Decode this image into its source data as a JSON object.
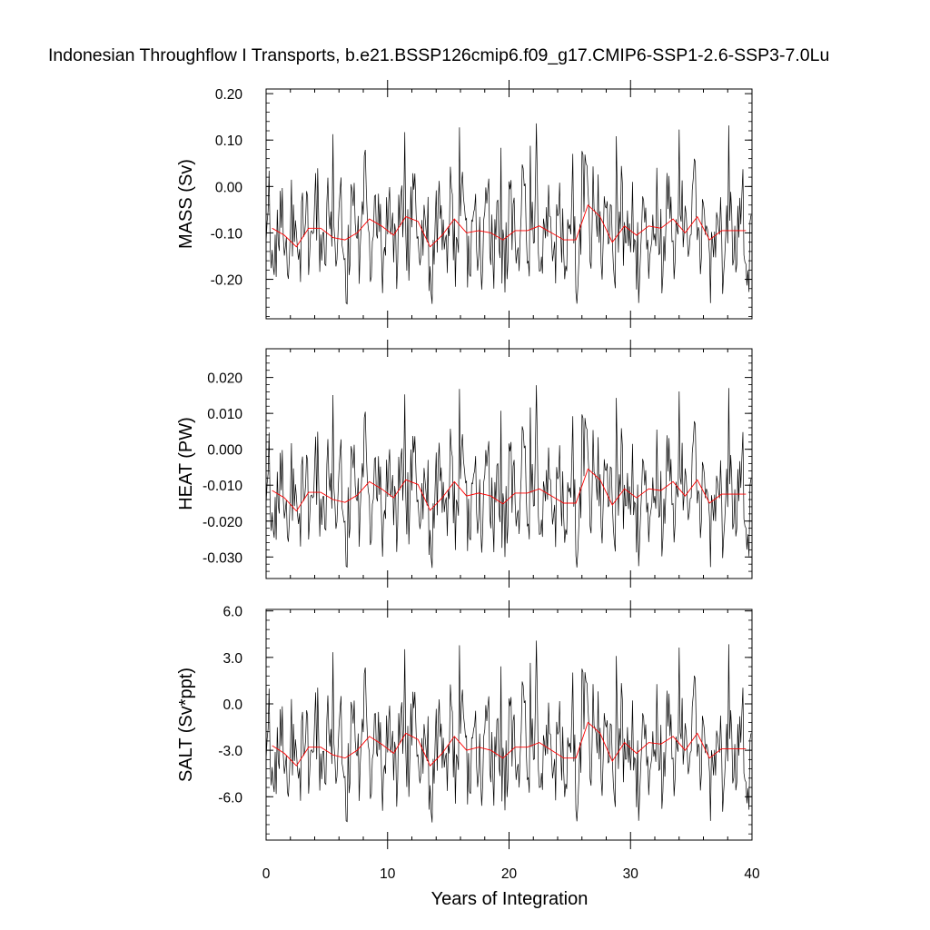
{
  "title": "Indonesian Throughflow I Transports, b.e21.BSSP126cmip6.f09_g17.CMIP6-SSP1-2.6-SSP3-7.0Lu",
  "xlabel": "Years of Integration",
  "colors": {
    "monthly_line": "#000000",
    "annual_line": "#ff0000",
    "frame": "#000000"
  },
  "chart_data": [
    {
      "type": "line",
      "ylabel": "MASS (Sv)",
      "xlim": [
        0,
        40
      ],
      "ylim": [
        -0.285,
        0.21
      ],
      "yticks": [
        0.2,
        0.1,
        0.0,
        -0.1,
        -0.2
      ],
      "ytick_labels": [
        "0.20",
        "0.10",
        "0.00",
        "-0.10",
        "-0.20"
      ],
      "xticks": [
        0,
        10,
        20,
        30,
        40
      ],
      "xtick_labels": [],
      "annual": [
        -0.09,
        -0.105,
        -0.13,
        -0.09,
        -0.09,
        -0.11,
        -0.115,
        -0.1,
        -0.07,
        -0.085,
        -0.105,
        -0.065,
        -0.075,
        -0.13,
        -0.105,
        -0.07,
        -0.1,
        -0.095,
        -0.1,
        -0.115,
        -0.095,
        -0.095,
        -0.085,
        -0.1,
        -0.115,
        -0.115,
        -0.04,
        -0.065,
        -0.12,
        -0.085,
        -0.105,
        -0.085,
        -0.09,
        -0.07,
        -0.1,
        -0.065,
        -0.115,
        -0.095,
        -0.095,
        -0.095
      ],
      "monthly_range": [
        -0.28,
        0.21
      ]
    },
    {
      "type": "line",
      "ylabel": "HEAT (PW)",
      "xlim": [
        0,
        40
      ],
      "ylim": [
        -0.036,
        0.028
      ],
      "yticks": [
        0.02,
        0.01,
        0.0,
        -0.01,
        -0.02,
        -0.03
      ],
      "ytick_labels": [
        "0.020",
        "0.010",
        "0.000",
        "-0.010",
        "-0.020",
        "-0.030"
      ],
      "xticks": [
        0,
        10,
        20,
        30,
        40
      ],
      "xtick_labels": [],
      "annual": [
        -0.0115,
        -0.0135,
        -0.0172,
        -0.012,
        -0.012,
        -0.014,
        -0.0148,
        -0.0128,
        -0.009,
        -0.011,
        -0.0135,
        -0.0085,
        -0.0098,
        -0.017,
        -0.0135,
        -0.009,
        -0.013,
        -0.0122,
        -0.013,
        -0.0152,
        -0.0122,
        -0.0122,
        -0.011,
        -0.013,
        -0.015,
        -0.015,
        -0.0055,
        -0.0085,
        -0.0155,
        -0.011,
        -0.0135,
        -0.011,
        -0.0115,
        -0.009,
        -0.013,
        -0.0085,
        -0.015,
        -0.0125,
        -0.0125,
        -0.0125
      ],
      "monthly_range": [
        -0.036,
        0.028
      ]
    },
    {
      "type": "line",
      "ylabel": "SALT (Sv*ppt)",
      "xlim": [
        0,
        40
      ],
      "ylim": [
        -8.8,
        6.1
      ],
      "yticks": [
        6.0,
        3.0,
        0.0,
        -3.0,
        -6.0
      ],
      "ytick_labels": [
        "6.0",
        "3.0",
        "0.0",
        "-3.0",
        "-6.0"
      ],
      "xticks": [
        0,
        10,
        20,
        30,
        40
      ],
      "xtick_labels": [
        "0",
        "10",
        "20",
        "30",
        "40"
      ],
      "annual": [
        -2.7,
        -3.2,
        -4.0,
        -2.8,
        -2.8,
        -3.3,
        -3.5,
        -3.0,
        -2.1,
        -2.6,
        -3.2,
        -1.9,
        -2.3,
        -4.0,
        -3.2,
        -2.1,
        -3.0,
        -2.8,
        -3.0,
        -3.5,
        -2.8,
        -2.8,
        -2.5,
        -3.0,
        -3.5,
        -3.5,
        -1.2,
        -1.9,
        -3.7,
        -2.5,
        -3.2,
        -2.5,
        -2.6,
        -2.1,
        -3.0,
        -1.9,
        -3.5,
        -2.9,
        -2.9,
        -2.9
      ],
      "monthly_range": [
        -8.6,
        6.0
      ]
    }
  ]
}
